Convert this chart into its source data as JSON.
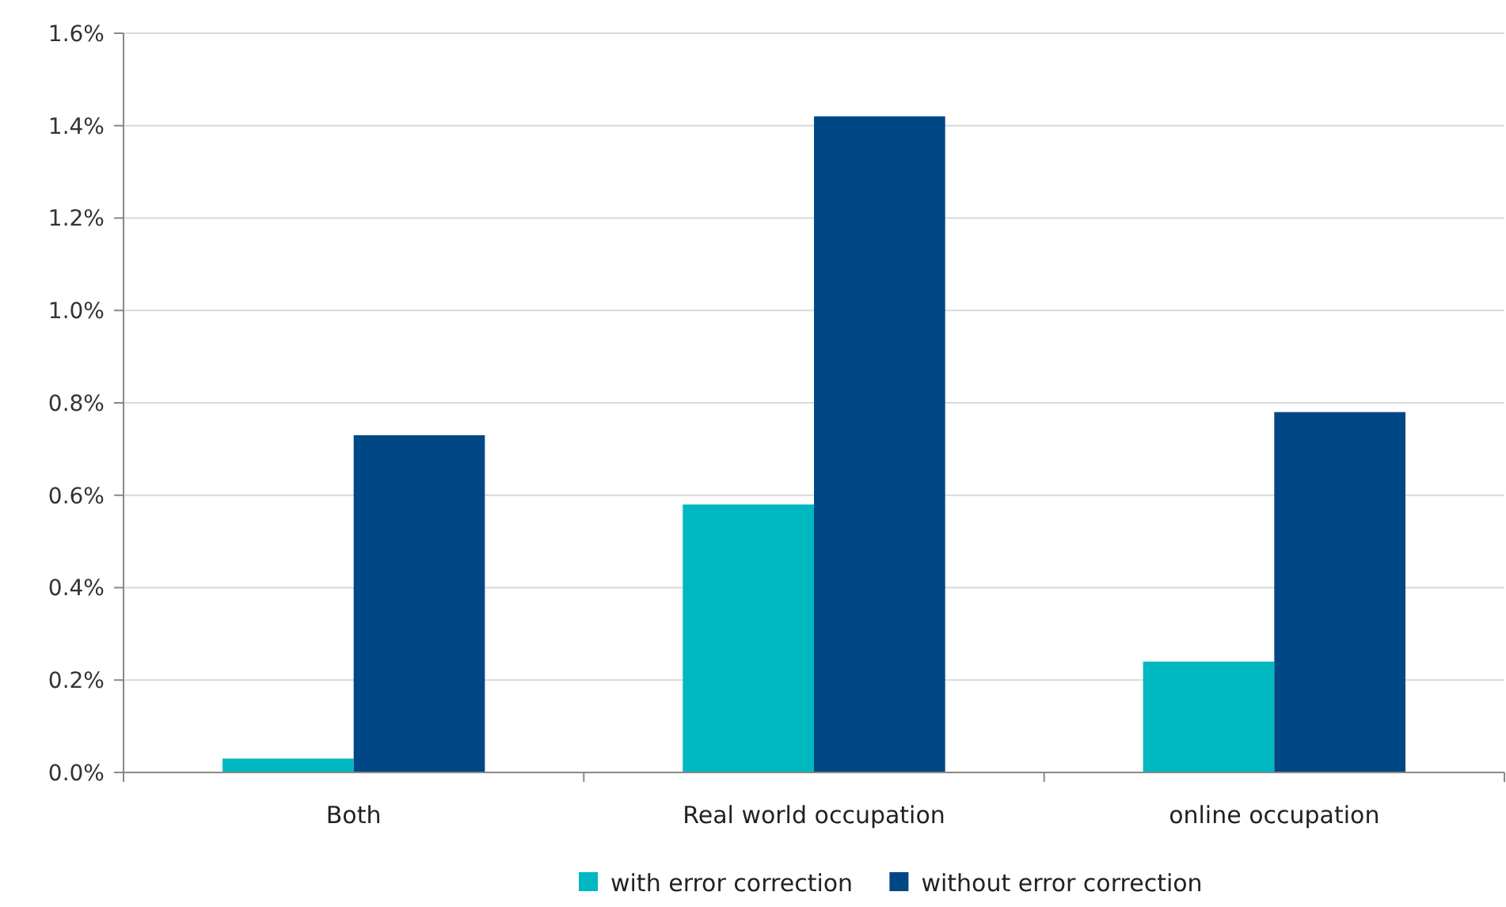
{
  "chart_data": {
    "type": "bar",
    "categories": [
      "Both",
      "Real world occupation",
      "online occupation"
    ],
    "series": [
      {
        "name": "with error correction",
        "color": "#00b8c0",
        "values": [
          0.03,
          0.58,
          0.24
        ]
      },
      {
        "name": "without error correction",
        "color": "#004785",
        "values": [
          0.73,
          1.42,
          0.78
        ]
      }
    ],
    "ylim": [
      0,
      1.6
    ],
    "yticks": [
      {
        "value": 0,
        "label": "0.0%"
      },
      {
        "value": 0.2,
        "label": "0.2%"
      },
      {
        "value": 0.4,
        "label": "0.4%"
      },
      {
        "value": 0.6,
        "label": "0.6%"
      },
      {
        "value": 0.8,
        "label": "0.8%"
      },
      {
        "value": 1,
        "label": "1.0%"
      },
      {
        "value": 1.2,
        "label": "1.2%"
      },
      {
        "value": 1.4,
        "label": "1.4%"
      },
      {
        "value": 1.6,
        "label": "1.6%"
      }
    ],
    "grid": "y",
    "legend": "bottom"
  }
}
